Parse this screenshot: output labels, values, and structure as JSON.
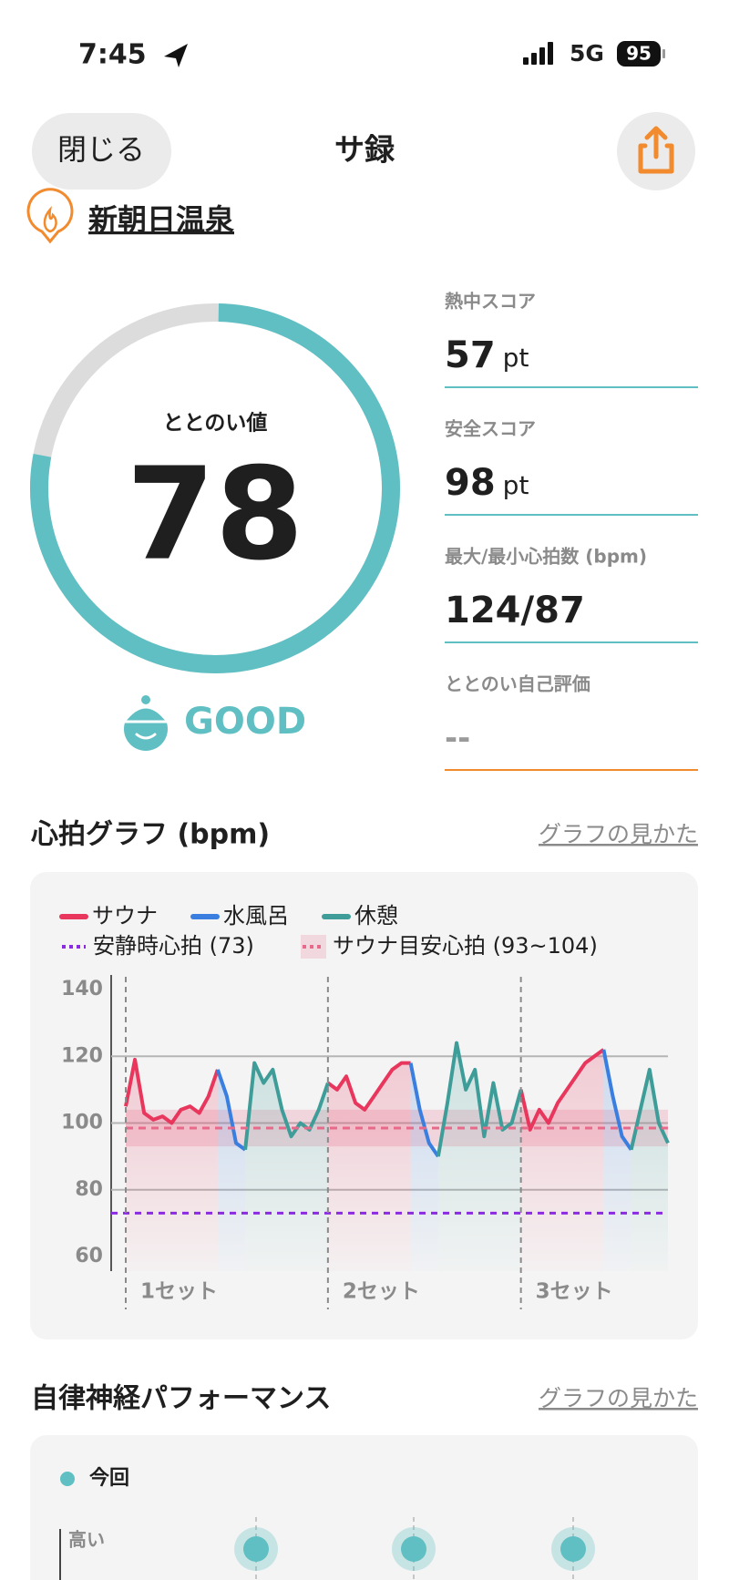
{
  "status_bar": {
    "time": "7:45",
    "network": "5G",
    "battery": "95"
  },
  "header": {
    "close": "閉じる",
    "title": "サ録"
  },
  "location": "新朝日温泉",
  "score": {
    "label": "ととのい値",
    "value": 78,
    "lim": [
      0,
      100
    ],
    "rating": "GOOD"
  },
  "stats": [
    {
      "label": "熱中スコア",
      "value": 57,
      "unit": "pt"
    },
    {
      "label": "安全スコア",
      "value": 98,
      "unit": "pt"
    },
    {
      "label": "最大/最小心拍数 (bpm)",
      "value": "124/87"
    },
    {
      "label": "ととのい自己評価",
      "value": "--"
    }
  ],
  "heart_graph": {
    "title": "心拍グラフ (bpm)",
    "link": "グラフの見かた",
    "chart_data": {
      "type": "line",
      "series": [
        {
          "name": "サウナ",
          "color": "#e8365d",
          "values": [
            105,
            119,
            103,
            101,
            102,
            100,
            104,
            105,
            103,
            108,
            116,
            null,
            null,
            null,
            null,
            null,
            null,
            null,
            null,
            null,
            null,
            null,
            112,
            110,
            114,
            106,
            104,
            108,
            112,
            116,
            118,
            118,
            null,
            null,
            null,
            null,
            null,
            null,
            null,
            null,
            null,
            null,
            null,
            110,
            98,
            104,
            100,
            106,
            110,
            114,
            118,
            120,
            122,
            null,
            null,
            null,
            null,
            null,
            null,
            null
          ]
        },
        {
          "name": "水風呂",
          "color": "#3a7fe0",
          "values": [
            null,
            null,
            null,
            null,
            null,
            null,
            null,
            null,
            null,
            null,
            116,
            108,
            94,
            92,
            null,
            null,
            null,
            null,
            null,
            null,
            null,
            null,
            null,
            null,
            null,
            null,
            null,
            null,
            null,
            null,
            null,
            118,
            104,
            94,
            90,
            null,
            null,
            null,
            null,
            null,
            null,
            null,
            null,
            null,
            null,
            null,
            null,
            null,
            null,
            null,
            null,
            null,
            122,
            108,
            96,
            92,
            null,
            null,
            null,
            null
          ]
        },
        {
          "name": "休憩",
          "color": "#3e9d98",
          "values": [
            null,
            null,
            null,
            null,
            null,
            null,
            null,
            null,
            null,
            null,
            null,
            null,
            null,
            92,
            118,
            112,
            116,
            104,
            96,
            100,
            98,
            104,
            112,
            null,
            null,
            null,
            null,
            null,
            null,
            null,
            null,
            null,
            null,
            null,
            90,
            106,
            124,
            110,
            116,
            96,
            112,
            98,
            100,
            110,
            null,
            null,
            null,
            null,
            null,
            null,
            null,
            null,
            null,
            null,
            null,
            92,
            104,
            116,
            100,
            94
          ]
        }
      ],
      "resting_hr": {
        "label": "安静時心拍 (73)",
        "value": 73,
        "color": "#8a2be2"
      },
      "target_range": {
        "label": "サウナ目安心拍 (93~104)",
        "values": [
          93,
          104
        ],
        "color": "#e86a8a"
      },
      "set_labels": [
        "1セット",
        "2セット",
        "3セット"
      ],
      "ylim": [
        60,
        140
      ],
      "yticks": [
        60,
        80,
        100,
        120,
        140
      ],
      "grid": true
    }
  },
  "autonomic": {
    "title": "自律神経パフォーマンス",
    "link": "グラフの見かた",
    "legend": "今回",
    "y_label": "高い"
  }
}
